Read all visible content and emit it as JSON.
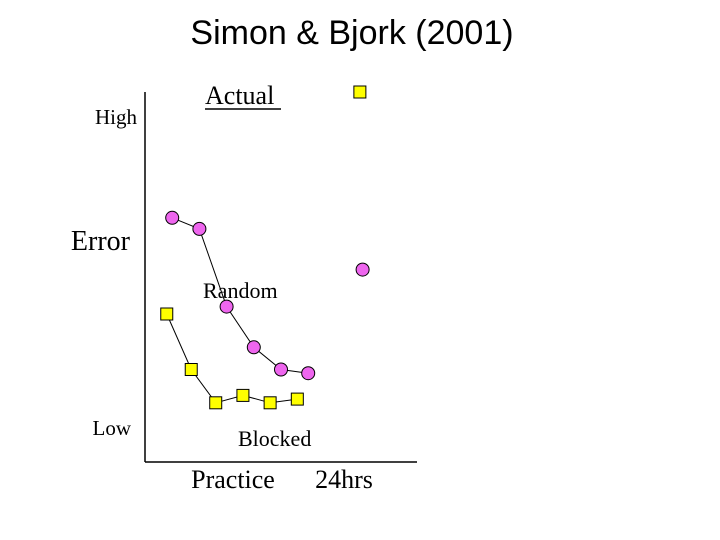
{
  "chart_data": {
    "type": "scatter",
    "title": "Simon & Bjork (2001)",
    "xlabel": "Practice",
    "ylabel": "Error",
    "ylabel_high": "High",
    "ylabel_low": "Low",
    "x_retention_label": "24hrs",
    "annotation": "Actual",
    "legend": "none",
    "grid": false,
    "xlim": [
      0,
      10
    ],
    "ylim": [
      0,
      10
    ],
    "series": [
      {
        "name": "Random",
        "marker": "circle",
        "color": "#ee66ee",
        "practice": [
          [
            1,
            6.6
          ],
          [
            2,
            6.3
          ],
          [
            3,
            4.2
          ],
          [
            4,
            3.1
          ],
          [
            5,
            2.5
          ],
          [
            6,
            2.4
          ]
        ],
        "retention": [
          [
            8,
            5.2
          ]
        ]
      },
      {
        "name": "Blocked",
        "marker": "square",
        "color": "#ffff00",
        "practice": [
          [
            0.8,
            4.0
          ],
          [
            1.7,
            2.5
          ],
          [
            2.6,
            1.6
          ],
          [
            3.6,
            1.8
          ],
          [
            4.6,
            1.6
          ],
          [
            5.6,
            1.7
          ]
        ],
        "retention": [
          [
            7.9,
            10.0
          ]
        ]
      }
    ]
  }
}
